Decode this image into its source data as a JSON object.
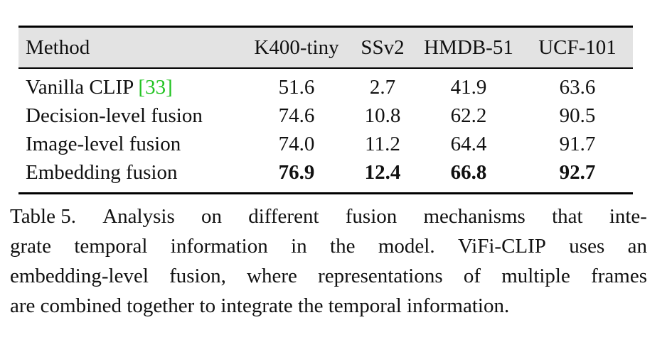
{
  "table": {
    "headers": [
      "Method",
      "K400-tiny",
      "SSv2",
      "HMDB-51",
      "UCF-101"
    ],
    "rows": [
      {
        "method": "Vanilla CLIP ",
        "cite": "[33]",
        "values": [
          "51.6",
          "2.7",
          "41.9",
          "63.6"
        ],
        "bold": false
      },
      {
        "method": "Decision-level fusion",
        "cite": "",
        "values": [
          "74.6",
          "10.8",
          "62.2",
          "90.5"
        ],
        "bold": false
      },
      {
        "method": "Image-level fusion",
        "cite": "",
        "values": [
          "74.0",
          "11.2",
          "64.4",
          "91.7"
        ],
        "bold": false
      },
      {
        "method": "Embedding fusion",
        "cite": "",
        "values": [
          "76.9",
          "12.4",
          "66.8",
          "92.7"
        ],
        "bold": true
      }
    ]
  },
  "caption": {
    "line1": [
      "Table 5.",
      "Analysis",
      "on",
      "different",
      "fusion",
      "mechanisms",
      "that",
      "inte-"
    ],
    "line2": [
      "grate",
      "temporal",
      "information",
      "in",
      "the",
      "model.",
      "ViFi-CLIP",
      "uses",
      "an"
    ],
    "line3": [
      "embedding-level",
      "fusion,",
      "where",
      "representations",
      "of",
      "multiple",
      "frames"
    ],
    "line4": "are combined together to integrate the temporal information."
  },
  "colors": {
    "header_bg": "#e3e3e3",
    "citation": "#22c322"
  }
}
